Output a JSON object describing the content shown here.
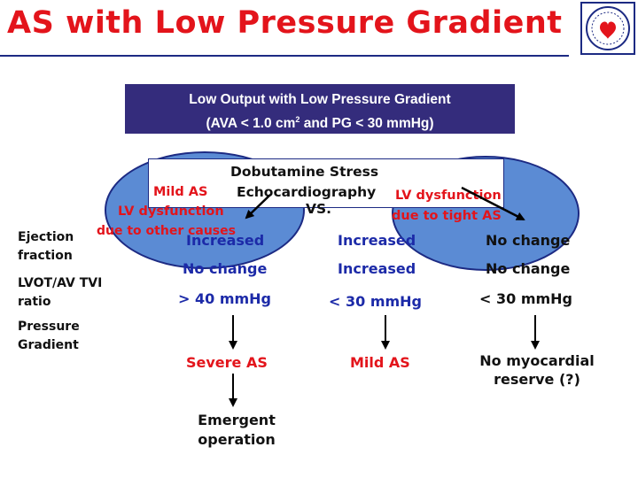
{
  "header": {
    "title": "AS with Low Pressure Gradient"
  },
  "top_box": {
    "line1": "Low Output with Low Pressure Gradient",
    "line2_pre": "(AVA < 1.0 cm",
    "line2_sup": "2",
    "line2_post": " and PG < 30 mmHg)"
  },
  "test_box": {
    "line1": "Dobutamine Stress",
    "line2": "Echocardiography",
    "vs": "VS."
  },
  "left_hypothesis": {
    "label1": "Mild AS",
    "label2_line1": "LV dysfunction",
    "label2_line2": "due to other causes"
  },
  "right_hypothesis": {
    "line1": "LV dysfunction",
    "line2": "due to tight AS"
  },
  "row_labels": {
    "ef": "Ejection fraction",
    "lvot": "LVOT/AV TVI ratio",
    "pg": "Pressure Gradient"
  },
  "columns": [
    {
      "ef": "Increased",
      "lvot": "No change",
      "pg": "> 40 mmHg",
      "diagnosis": "Severe AS",
      "action": "Emergent operation"
    },
    {
      "ef": "Increased",
      "lvot": "Increased",
      "pg": "< 30 mmHg",
      "diagnosis": "Mild AS"
    },
    {
      "ef": "No change",
      "lvot": "No change",
      "pg": "< 30 mmHg",
      "diagnosis": "No myocardial reserve (?)"
    }
  ],
  "colors": {
    "title_red": "#e3141b",
    "navy": "#342c7c",
    "ellipse_blue": "#5b8bd4",
    "value_blue": "#1c2aa8"
  }
}
